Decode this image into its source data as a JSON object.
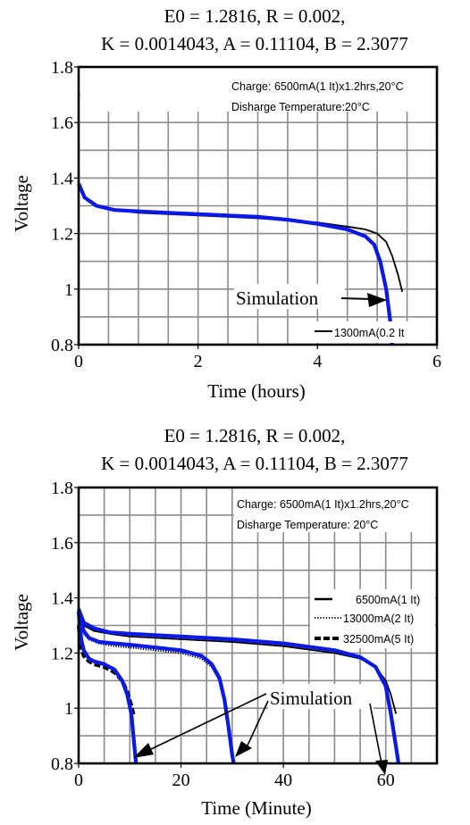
{
  "chart_data": [
    {
      "type": "line",
      "title_line1": "E0 = 1.2816, R = 0.002,",
      "title_line2": "K = 0.0014043, A = 0.11104, B = 2.3077",
      "xlabel": "Time (hours)",
      "ylabel": "Voltage",
      "xlim": [
        0,
        6
      ],
      "ylim": [
        0.8,
        1.8
      ],
      "xticks": [
        "0",
        "2",
        "4",
        "6"
      ],
      "yticks": [
        "0.8",
        "1",
        "1.2",
        "1.4",
        "1.6",
        "1.8"
      ],
      "grid": true,
      "legend_position": "bottom-right",
      "info_line1": "Charge: 6500mA(1 It)x1.2hrs,20°C",
      "info_line2": "Disharge Temperature:20°C",
      "annotations": [
        "Simulation"
      ],
      "series": [
        {
          "name": "1300mA(0.2 It",
          "style": "solid-thin",
          "color": "#000000",
          "x": [
            0,
            0.1,
            0.3,
            0.6,
            1.0,
            1.5,
            2.0,
            2.5,
            3.0,
            3.5,
            4.0,
            4.5,
            4.8,
            5.0,
            5.15,
            5.25,
            5.35,
            5.42
          ],
          "y": [
            1.38,
            1.33,
            1.3,
            1.285,
            1.275,
            1.27,
            1.265,
            1.26,
            1.255,
            1.248,
            1.24,
            1.225,
            1.215,
            1.2,
            1.17,
            1.12,
            1.05,
            0.99
          ]
        },
        {
          "name": "Simulation",
          "style": "solid-thick",
          "color": "#0a19e6",
          "x": [
            0,
            0.1,
            0.3,
            0.6,
            1.0,
            1.5,
            2.0,
            2.5,
            3.0,
            3.5,
            4.0,
            4.5,
            4.8,
            4.95,
            5.05,
            5.15,
            5.22,
            5.25
          ],
          "y": [
            1.38,
            1.33,
            1.3,
            1.285,
            1.28,
            1.275,
            1.27,
            1.265,
            1.26,
            1.25,
            1.235,
            1.215,
            1.19,
            1.16,
            1.1,
            1.0,
            0.88,
            0.8
          ]
        }
      ]
    },
    {
      "type": "line",
      "title_line1": "E0 = 1.2816, R = 0.002,",
      "title_line2": "K = 0.0014043, A = 0.11104, B = 2.3077",
      "xlabel": "Time (Minute)",
      "ylabel": "Voltage",
      "xlim": [
        0,
        70
      ],
      "ylim": [
        0.8,
        1.8
      ],
      "xticks": [
        "0",
        "20",
        "40",
        "60"
      ],
      "yticks": [
        "0.8",
        "1",
        "1.2",
        "1.4",
        "1.6",
        "1.8"
      ],
      "grid": true,
      "legend_position": "right",
      "info_line1": "Charge: 6500mA(1 It)x1.2hrs,20°C",
      "info_line2": "Disharge Temperature: 20°C",
      "annotations": [
        "Simulation"
      ],
      "series": [
        {
          "name": "6500mA(1 It)",
          "style": "solid-thin",
          "color": "#000000",
          "x": [
            0,
            1,
            3,
            6,
            10,
            15,
            20,
            30,
            40,
            50,
            55,
            58,
            60,
            61,
            62
          ],
          "y": [
            1.34,
            1.3,
            1.28,
            1.27,
            1.26,
            1.255,
            1.25,
            1.24,
            1.225,
            1.2,
            1.18,
            1.15,
            1.1,
            1.05,
            0.98
          ]
        },
        {
          "name": "13000mA(2 It)",
          "style": "dotted",
          "color": "#000000",
          "x": [
            0,
            1,
            2,
            4,
            7,
            10,
            15,
            20,
            24,
            26,
            27.5,
            28.5,
            29.3,
            30
          ],
          "y": [
            1.32,
            1.27,
            1.25,
            1.235,
            1.225,
            1.22,
            1.21,
            1.2,
            1.18,
            1.15,
            1.1,
            1.03,
            0.93,
            0.85
          ]
        },
        {
          "name": "32500mA(5 It)",
          "style": "dashed-thick",
          "color": "#000000",
          "x": [
            0,
            0.5,
            1,
            2,
            3,
            5,
            7,
            8.5,
            9.5,
            10.3,
            10.8
          ],
          "y": [
            1.3,
            1.22,
            1.19,
            1.17,
            1.16,
            1.15,
            1.13,
            1.1,
            1.06,
            1.01,
            0.97
          ]
        },
        {
          "name": "Simulation",
          "style": "solid-thick",
          "color": "#0a19e6",
          "x": [
            0,
            1,
            3,
            6,
            10,
            15,
            20,
            30,
            40,
            50,
            55,
            58,
            60,
            61,
            62,
            62.5
          ],
          "y": [
            1.36,
            1.31,
            1.29,
            1.275,
            1.27,
            1.265,
            1.26,
            1.25,
            1.235,
            1.21,
            1.185,
            1.15,
            1.08,
            0.98,
            0.86,
            0.8
          ]
        },
        {
          "name": "Simulation",
          "style": "solid-thick",
          "color": "#0a19e6",
          "x": [
            0,
            1,
            2,
            4,
            7,
            10,
            15,
            20,
            24,
            26,
            27.5,
            28.5,
            29.3,
            30,
            30.3
          ],
          "y": [
            1.35,
            1.28,
            1.255,
            1.24,
            1.235,
            1.23,
            1.22,
            1.21,
            1.19,
            1.16,
            1.11,
            1.03,
            0.93,
            0.83,
            0.8
          ]
        },
        {
          "name": "Simulation",
          "style": "solid-thick",
          "color": "#0a19e6",
          "x": [
            0,
            0.5,
            1,
            2,
            3,
            5,
            7,
            8.5,
            9.5,
            10.3,
            10.8,
            11.2
          ],
          "y": [
            1.35,
            1.25,
            1.21,
            1.18,
            1.17,
            1.16,
            1.14,
            1.1,
            1.05,
            0.98,
            0.88,
            0.8
          ]
        }
      ]
    }
  ]
}
